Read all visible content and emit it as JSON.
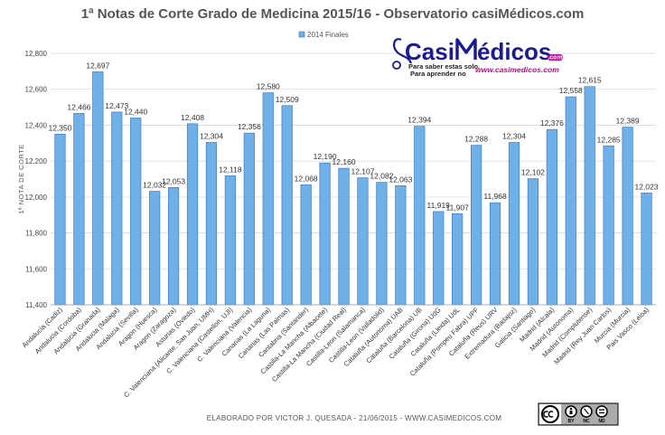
{
  "chart_data": {
    "type": "bar",
    "title": "1ª Notas de Corte Grado de Medicina 2015/16 - Observatorio casiMédicos.com",
    "ylabel": "1ª NOTA DE CORTE",
    "xlabel": "",
    "ylim": [
      11400,
      12800
    ],
    "yticks": [
      "11,400",
      "11,600",
      "11,800",
      "12,000",
      "12,200",
      "12,400",
      "12,600",
      "12,800"
    ],
    "ytick_values": [
      11400,
      11600,
      11800,
      12000,
      12200,
      12400,
      12600,
      12800
    ],
    "grid": true,
    "legend_position": "top-center",
    "series": [
      {
        "name": "2014 Finales",
        "color": "#6fb0e8"
      }
    ],
    "categories": [
      "Andalucia (Cadiz)",
      "Andalucia (Cordoba)",
      "Andalucia (Granada)",
      "Andalucia (Malaga)",
      "Andalucia (Sevilla)",
      "Aragon (Huesca)",
      "Aragon (Zaragoza)",
      "Asturias (Oviedo)",
      "C. Valenciana (Alicante, San Juan, UMH)",
      "C. Valenciana (Castellon, UJI)",
      "C. Valenciana (Valencia)",
      "Canarias (La Laguna)",
      "Canarias (Las Palmas)",
      "Cantabria (Santander)",
      "Castilla-La Mancha (Albacete)",
      "Castilla-La Mancha (Ciudad Real)",
      "Castilla-Leon (Salamanca)",
      "Castilla-Leon (Valladolid)",
      "Cataluña (Autonoma) UAB",
      "Cataluña (Barcelona) UB",
      "Cataluña (Girona) UdG",
      "Cataluña (Lleida) UdL",
      "Cataluña (Pompeu Fabra) UPF",
      "Cataluña (Reus) URV",
      "Extremadura (Badajoz)",
      "Galicia (Santiago)",
      "Madrid (Alcala)",
      "Madrid (Autonoma)",
      "Madrid (Complutense)",
      "Madrid (Rey Juan Carlos)",
      "Murcia (Murcia)",
      "Pais Vasco (Leioa)"
    ],
    "values": [
      12350,
      12466,
      12697,
      12473,
      12440,
      12032,
      12053,
      12408,
      12304,
      12118,
      12356,
      12580,
      12509,
      12068,
      12190,
      12160,
      12107,
      12082,
      12063,
      12394,
      11919,
      11907,
      12288,
      11968,
      12304,
      12102,
      12376,
      12558,
      12615,
      12285,
      12389,
      12023
    ],
    "data_labels": [
      "12,350",
      "12,466",
      "12,697",
      "12,473",
      "12,440",
      "12,032",
      "12,053",
      "12,408",
      "12,304",
      "12,118",
      "12,356",
      "12,580",
      "12,509",
      "12,068",
      "12,190",
      "12,160",
      "12,107",
      "12,082",
      "12,063",
      "12,394",
      "11,919",
      "11,907",
      "12,288",
      "11,968",
      "12,304",
      "12,102",
      "12,376",
      "12,558",
      "12,615",
      "12,285",
      "12,389",
      "12,023"
    ]
  },
  "footer": {
    "credit": "ELABORADO POR VICTOR J. QUESADA - 21/06/2015 - WWW.CASIMEDICOS.COM"
  },
  "logo": {
    "name_part1": "Casi",
    "name_part2": "édicos",
    "com": ".com",
    "tagline1": "Para saber estas solo.",
    "tagline2": "Para aprender no",
    "url": "www.casimedicos.com"
  },
  "license": {
    "label1": "BY",
    "label2": "NC",
    "label3": "ND"
  },
  "colors": {
    "bar_fill": "#6fb0e8",
    "bar_stroke": "#3a7fc4",
    "grid": "#d9d9d9",
    "logo_blue": "#1b1b8f",
    "logo_magenta": "#b0108a"
  }
}
